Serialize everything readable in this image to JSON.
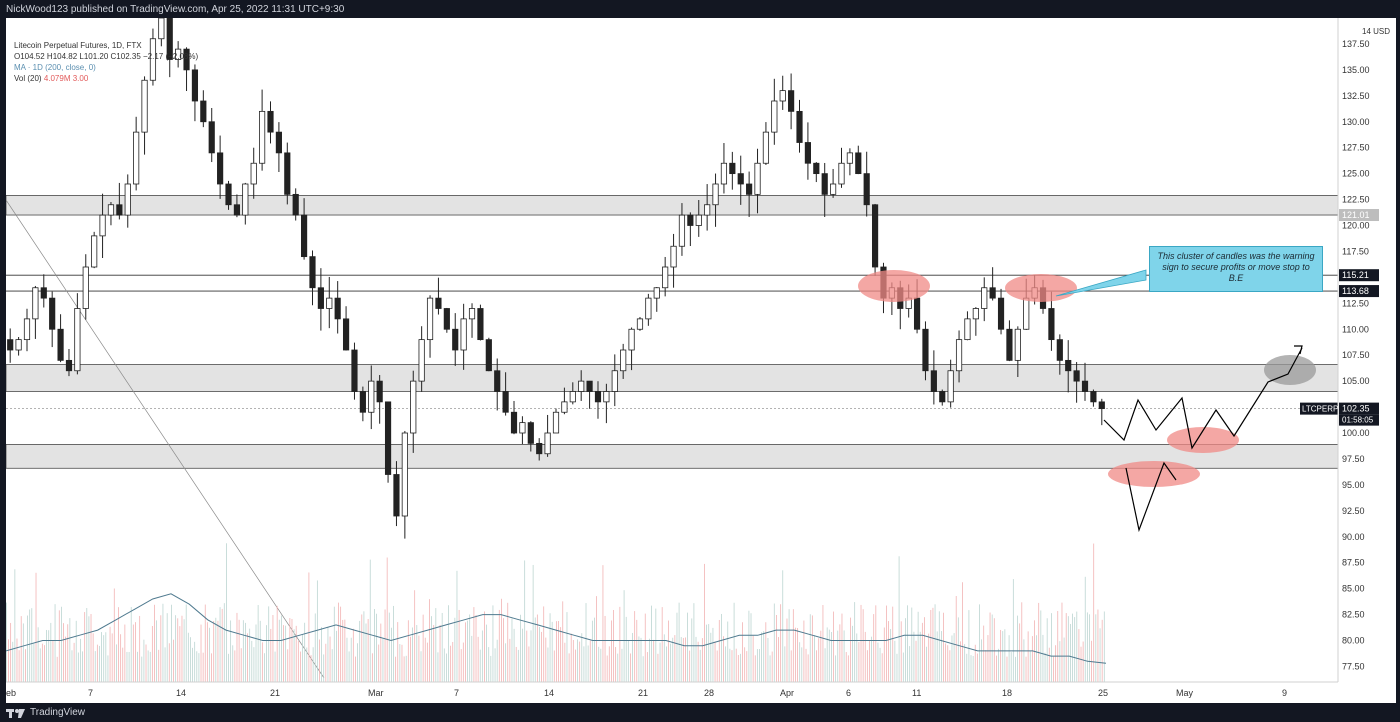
{
  "header": {
    "publish_line": "NickWood123 published on TradingView.com, Apr 25, 2022 11:31 UTC+9:30"
  },
  "legend": {
    "symbol_line": "Litecoin Perpetual Futures, 1D, FTX",
    "ohlc": "O104.52 H104.82 L101.20 C102.35 −2.17 (−2.08%)",
    "ma_line": "MA · 1D (200, close, 0)",
    "vol_line": "Vol (20)",
    "vol_values": "4.079M 3.00"
  },
  "annotation": {
    "note_text": "This cluster of candles was the warning sign to secure profits or move stop to B.E"
  },
  "axis": {
    "currency": "USD",
    "ticker_tag": "LTCPERP",
    "countdown": "01:58:05"
  },
  "footer": {
    "brand": "TradingView"
  },
  "chart_data": {
    "type": "candlestick",
    "title": "Litecoin Perpetual Futures, 1D, FTX",
    "ylim": [
      76,
      140
    ],
    "y_ticks": [
      77.5,
      80,
      82.5,
      85,
      87.5,
      90,
      92.5,
      95,
      97.5,
      100,
      102.5,
      105,
      107.5,
      110,
      112.5,
      115,
      117.5,
      120,
      122.5,
      125,
      127.5,
      130,
      132.5,
      135,
      137.5
    ],
    "x_tick_labels": [
      "eb",
      "7",
      "14",
      "21",
      "Mar",
      "7",
      "14",
      "21",
      "28",
      "Apr",
      "6",
      "11",
      "18",
      "25",
      "May",
      "9"
    ],
    "last_price": 102.35,
    "price_labels": [
      {
        "value": 115.21,
        "text": "115.21"
      },
      {
        "value": 113.68,
        "text": "113.68"
      },
      {
        "value": 121.01,
        "text": "121.01"
      },
      {
        "value": 102.35,
        "text": "102.35"
      }
    ],
    "zones": [
      {
        "low": 121.01,
        "high": 122.9
      },
      {
        "low": 104.0,
        "high": 106.6
      },
      {
        "low": 96.6,
        "high": 98.9
      }
    ],
    "levels": [
      115.21,
      113.68,
      102.35
    ],
    "path_close": [
      108,
      109,
      111,
      114,
      113,
      110,
      107,
      106,
      112,
      116,
      119,
      121,
      122,
      121,
      124,
      129,
      134,
      138,
      140,
      136,
      137,
      135,
      132,
      130,
      127,
      124,
      122,
      121,
      124,
      126,
      131,
      129,
      127,
      123,
      121,
      117,
      114,
      112,
      113,
      111,
      108,
      104,
      102,
      105,
      103,
      96,
      92,
      100,
      105,
      109,
      113,
      112,
      110,
      108,
      111,
      112,
      109,
      106,
      104,
      102,
      100,
      101,
      99,
      98,
      100,
      102,
      103,
      104,
      105,
      104,
      103,
      104,
      106,
      108,
      110,
      111,
      113,
      114,
      116,
      118,
      121,
      120,
      121,
      122,
      124,
      126,
      125,
      124,
      123,
      126,
      129,
      132,
      133,
      131,
      128,
      126,
      125,
      123,
      124,
      126,
      127,
      125,
      122,
      116,
      113,
      114,
      112,
      113,
      110,
      106,
      104,
      103,
      106,
      109,
      111,
      112,
      114,
      113,
      110,
      107,
      110,
      113,
      114,
      112,
      109,
      107,
      106,
      105,
      104,
      103,
      102.35
    ],
    "ma_path": [
      79,
      79.5,
      80,
      80,
      80.5,
      81,
      82,
      83,
      84,
      84.5,
      83.5,
      82,
      81,
      80.5,
      80,
      80,
      80.5,
      81,
      81.5,
      81,
      80.5,
      80,
      80.5,
      81,
      81.5,
      82,
      82.5,
      82.5,
      82,
      81.5,
      81,
      80.5,
      80,
      80,
      80,
      80,
      80,
      79.5,
      79.5,
      80,
      80.5,
      80.5,
      81,
      81,
      80.5,
      80,
      80,
      80,
      80,
      80.5,
      80.5,
      80,
      79.5,
      79,
      79,
      79,
      79,
      78.5,
      78.5,
      78,
      77.8
    ]
  }
}
